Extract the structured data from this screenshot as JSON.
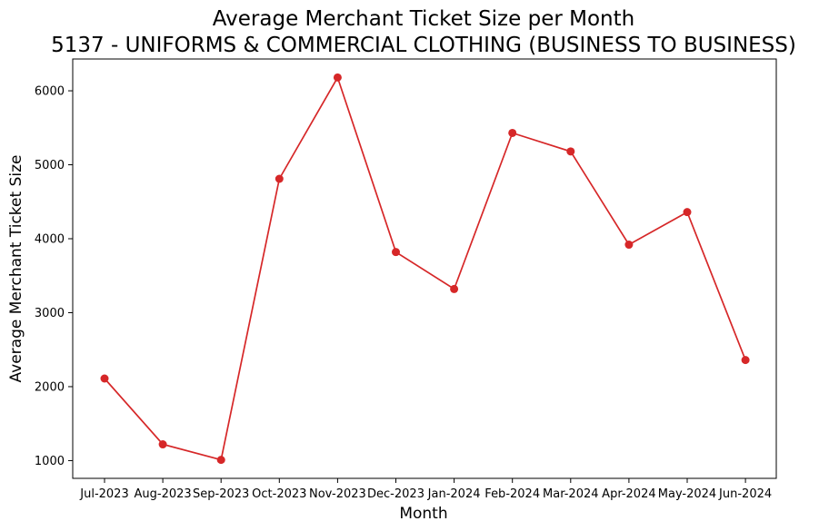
{
  "chart_data": {
    "type": "line",
    "title": "Average Merchant Ticket Size per Month",
    "subtitle": "5137 - UNIFORMS & COMMERCIAL CLOTHING (BUSINESS TO BUSINESS)",
    "xlabel": "Month",
    "ylabel": "Average Merchant Ticket Size",
    "categories": [
      "Jul-2023",
      "Aug-2023",
      "Sep-2023",
      "Oct-2023",
      "Nov-2023",
      "Dec-2023",
      "Jan-2024",
      "Feb-2024",
      "Mar-2024",
      "Apr-2024",
      "May-2024",
      "Jun-2024"
    ],
    "series": [
      {
        "values": [
          2110,
          1220,
          1010,
          4810,
          6180,
          3820,
          3320,
          5430,
          5180,
          3920,
          4360,
          2360
        ]
      }
    ],
    "ylim": [
      760,
      6430
    ],
    "yticks": [
      1000,
      2000,
      3000,
      4000,
      5000,
      6000
    ],
    "grid": false,
    "line_color": "#d62728",
    "marker_color": "#d62728"
  }
}
